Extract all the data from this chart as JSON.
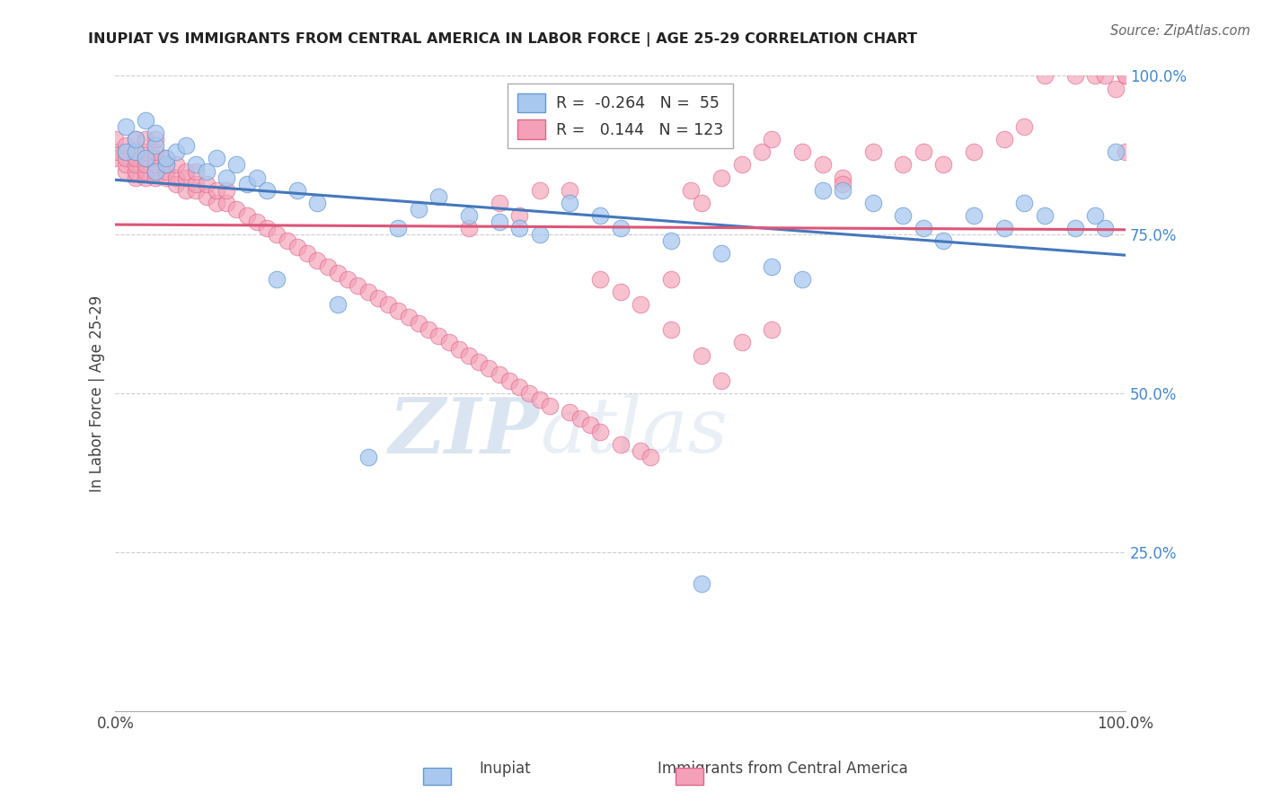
{
  "title": "INUPIAT VS IMMIGRANTS FROM CENTRAL AMERICA IN LABOR FORCE | AGE 25-29 CORRELATION CHART",
  "source": "Source: ZipAtlas.com",
  "ylabel": "In Labor Force | Age 25-29",
  "y_tick_labels": [
    "25.0%",
    "50.0%",
    "75.0%",
    "100.0%"
  ],
  "y_tick_values": [
    0.25,
    0.5,
    0.75,
    1.0
  ],
  "legend_entries": [
    {
      "label": "Inupiat",
      "color": "#a8c8f0",
      "edge": "#6699cc",
      "R": -0.264,
      "N": 55
    },
    {
      "label": "Immigrants from Central America",
      "color": "#f4a0b8",
      "edge": "#dd6688",
      "R": 0.144,
      "N": 123
    }
  ],
  "blue_line_color": "#4477bb",
  "pink_line_color": "#dd5577",
  "watermark_zip": "ZIP",
  "watermark_atlas": "atlas",
  "background_color": "#ffffff",
  "grid_color": "#cccccc",
  "blue_x": [
    0.01,
    0.01,
    0.02,
    0.02,
    0.03,
    0.03,
    0.04,
    0.04,
    0.04,
    0.05,
    0.05,
    0.06,
    0.07,
    0.08,
    0.09,
    0.1,
    0.11,
    0.12,
    0.13,
    0.14,
    0.15,
    0.16,
    0.18,
    0.2,
    0.22,
    0.25,
    0.28,
    0.3,
    0.32,
    0.35,
    0.38,
    0.4,
    0.42,
    0.45,
    0.48,
    0.5,
    0.55,
    0.6,
    0.65,
    0.68,
    0.7,
    0.75,
    0.78,
    0.8,
    0.82,
    0.85,
    0.88,
    0.9,
    0.92,
    0.95,
    0.97,
    0.98,
    0.99,
    0.72,
    0.58
  ],
  "blue_y": [
    0.88,
    0.92,
    0.88,
    0.9,
    0.87,
    0.93,
    0.89,
    0.91,
    0.85,
    0.86,
    0.87,
    0.88,
    0.89,
    0.86,
    0.85,
    0.87,
    0.84,
    0.86,
    0.83,
    0.84,
    0.82,
    0.68,
    0.82,
    0.8,
    0.64,
    0.4,
    0.76,
    0.79,
    0.81,
    0.78,
    0.77,
    0.76,
    0.75,
    0.8,
    0.78,
    0.76,
    0.74,
    0.72,
    0.7,
    0.68,
    0.82,
    0.8,
    0.78,
    0.76,
    0.74,
    0.78,
    0.76,
    0.8,
    0.78,
    0.76,
    0.78,
    0.76,
    0.88,
    0.82,
    0.2
  ],
  "pink_x": [
    0.0,
    0.0,
    0.0,
    0.01,
    0.01,
    0.01,
    0.01,
    0.01,
    0.02,
    0.02,
    0.02,
    0.02,
    0.02,
    0.02,
    0.03,
    0.03,
    0.03,
    0.03,
    0.03,
    0.03,
    0.04,
    0.04,
    0.04,
    0.04,
    0.04,
    0.04,
    0.05,
    0.05,
    0.05,
    0.05,
    0.06,
    0.06,
    0.06,
    0.07,
    0.07,
    0.07,
    0.08,
    0.08,
    0.08,
    0.09,
    0.09,
    0.1,
    0.1,
    0.11,
    0.11,
    0.12,
    0.13,
    0.14,
    0.15,
    0.16,
    0.17,
    0.18,
    0.19,
    0.2,
    0.21,
    0.22,
    0.23,
    0.24,
    0.25,
    0.26,
    0.27,
    0.28,
    0.29,
    0.3,
    0.31,
    0.32,
    0.33,
    0.34,
    0.35,
    0.36,
    0.37,
    0.38,
    0.39,
    0.4,
    0.41,
    0.42,
    0.43,
    0.45,
    0.46,
    0.47,
    0.48,
    0.5,
    0.52,
    0.53,
    0.55,
    0.57,
    0.58,
    0.6,
    0.62,
    0.64,
    0.65,
    0.68,
    0.7,
    0.72,
    0.75,
    0.78,
    0.8,
    0.82,
    0.85,
    0.88,
    0.9,
    0.92,
    0.95,
    0.97,
    0.98,
    0.99,
    1.0,
    1.0,
    1.0,
    0.72,
    0.4,
    0.45,
    0.48,
    0.5,
    0.52,
    0.55,
    0.58,
    0.6,
    0.35,
    0.38,
    0.42,
    0.62,
    0.65
  ],
  "pink_y": [
    0.87,
    0.88,
    0.9,
    0.85,
    0.86,
    0.87,
    0.88,
    0.89,
    0.84,
    0.85,
    0.86,
    0.87,
    0.88,
    0.9,
    0.84,
    0.85,
    0.86,
    0.87,
    0.88,
    0.9,
    0.84,
    0.85,
    0.86,
    0.87,
    0.88,
    0.9,
    0.84,
    0.85,
    0.86,
    0.87,
    0.83,
    0.84,
    0.86,
    0.82,
    0.84,
    0.85,
    0.82,
    0.83,
    0.85,
    0.81,
    0.83,
    0.8,
    0.82,
    0.8,
    0.82,
    0.79,
    0.78,
    0.77,
    0.76,
    0.75,
    0.74,
    0.73,
    0.72,
    0.71,
    0.7,
    0.69,
    0.68,
    0.67,
    0.66,
    0.65,
    0.64,
    0.63,
    0.62,
    0.61,
    0.6,
    0.59,
    0.58,
    0.57,
    0.56,
    0.55,
    0.54,
    0.53,
    0.52,
    0.51,
    0.5,
    0.49,
    0.48,
    0.47,
    0.46,
    0.45,
    0.44,
    0.42,
    0.41,
    0.4,
    0.68,
    0.82,
    0.8,
    0.84,
    0.86,
    0.88,
    0.9,
    0.88,
    0.86,
    0.84,
    0.88,
    0.86,
    0.88,
    0.86,
    0.88,
    0.9,
    0.92,
    1.0,
    1.0,
    1.0,
    1.0,
    0.98,
    1.0,
    1.0,
    0.88,
    0.83,
    0.78,
    0.82,
    0.68,
    0.66,
    0.64,
    0.6,
    0.56,
    0.52,
    0.76,
    0.8,
    0.82,
    0.58,
    0.6
  ]
}
